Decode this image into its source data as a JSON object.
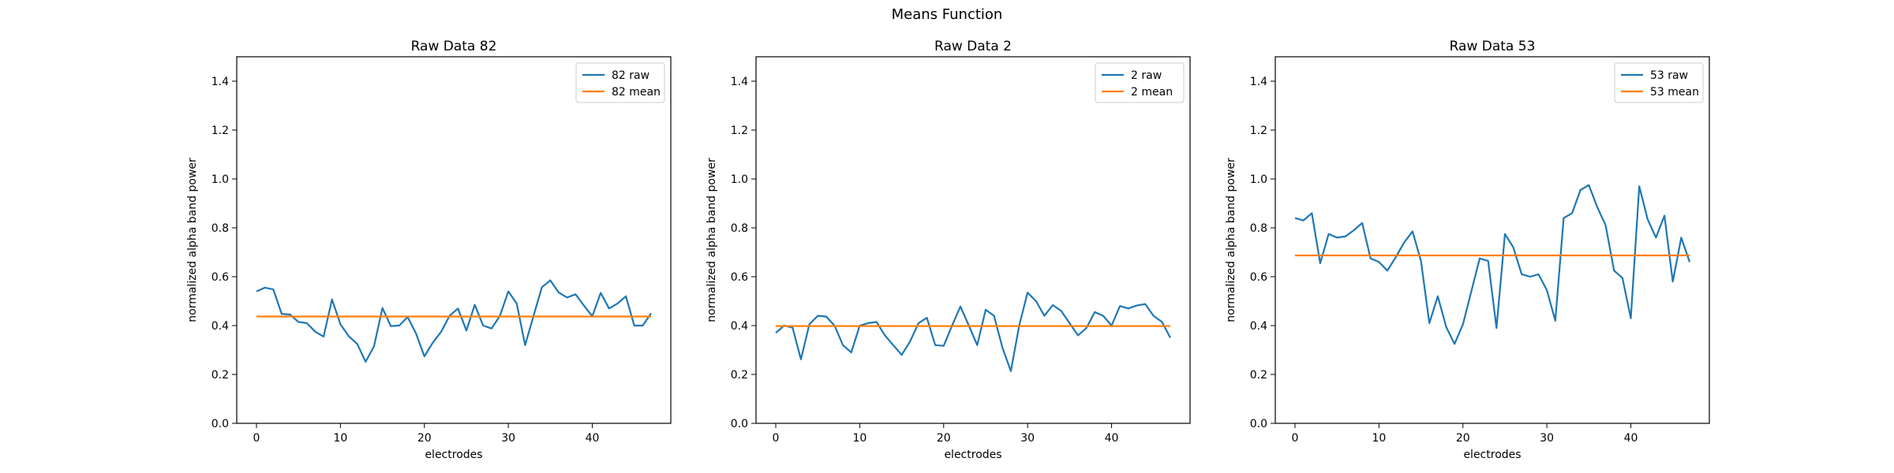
{
  "figure": {
    "suptitle": "Means Function"
  },
  "chart_data": [
    {
      "type": "line",
      "title": "Raw Data 82",
      "xlabel": "electrodes",
      "ylabel": "normalized alpha band power",
      "xlim": [
        -2.35,
        49.35
      ],
      "ylim": [
        0.0,
        1.5
      ],
      "xticks": [
        0,
        10,
        20,
        30,
        40
      ],
      "yticks": [
        0.0,
        0.2,
        0.4,
        0.6,
        0.8,
        1.0,
        1.2,
        1.4
      ],
      "legend": "top-right",
      "grid": false,
      "series": [
        {
          "name": "82 raw",
          "color": "#1f77b4",
          "x": [
            0,
            1,
            2,
            3,
            4,
            5,
            6,
            7,
            8,
            9,
            10,
            11,
            12,
            13,
            14,
            15,
            16,
            17,
            18,
            19,
            20,
            21,
            22,
            23,
            24,
            25,
            26,
            27,
            28,
            29,
            30,
            31,
            32,
            33,
            34,
            35,
            36,
            37,
            38,
            39,
            40,
            41,
            42,
            43,
            44,
            45,
            46,
            47
          ],
          "y": [
            0.54,
            0.555,
            0.548,
            0.448,
            0.445,
            0.415,
            0.41,
            0.375,
            0.355,
            0.507,
            0.405,
            0.356,
            0.325,
            0.252,
            0.315,
            0.472,
            0.398,
            0.4,
            0.435,
            0.368,
            0.274,
            0.33,
            0.375,
            0.44,
            0.47,
            0.38,
            0.485,
            0.4,
            0.388,
            0.44,
            0.54,
            0.49,
            0.32,
            0.44,
            0.557,
            0.585,
            0.535,
            0.515,
            0.528,
            0.482,
            0.438,
            0.534,
            0.47,
            0.49,
            0.52,
            0.4,
            0.4,
            0.45
          ]
        },
        {
          "name": "82 mean",
          "color": "#ff7f0e",
          "x": [
            0,
            47
          ],
          "y": [
            0.437,
            0.437
          ]
        }
      ]
    },
    {
      "type": "line",
      "title": "Raw Data 2",
      "xlabel": "electrodes",
      "ylabel": "normalized alpha band power",
      "xlim": [
        -2.35,
        49.35
      ],
      "ylim": [
        0.0,
        1.5
      ],
      "xticks": [
        0,
        10,
        20,
        30,
        40
      ],
      "yticks": [
        0.0,
        0.2,
        0.4,
        0.6,
        0.8,
        1.0,
        1.2,
        1.4
      ],
      "legend": "top-right",
      "grid": false,
      "series": [
        {
          "name": "2 raw",
          "color": "#1f77b4",
          "x": [
            0,
            1,
            2,
            3,
            4,
            5,
            6,
            7,
            8,
            9,
            10,
            11,
            12,
            13,
            14,
            15,
            16,
            17,
            18,
            19,
            20,
            21,
            22,
            23,
            24,
            25,
            26,
            27,
            28,
            29,
            30,
            31,
            32,
            33,
            34,
            35,
            36,
            37,
            38,
            39,
            40,
            41,
            42,
            43,
            44,
            45,
            46,
            47
          ],
          "y": [
            0.37,
            0.4,
            0.392,
            0.262,
            0.405,
            0.44,
            0.437,
            0.4,
            0.32,
            0.29,
            0.4,
            0.41,
            0.415,
            0.36,
            0.32,
            0.28,
            0.335,
            0.41,
            0.432,
            0.32,
            0.317,
            0.4,
            0.478,
            0.4,
            0.32,
            0.465,
            0.44,
            0.31,
            0.214,
            0.4,
            0.535,
            0.5,
            0.44,
            0.484,
            0.46,
            0.41,
            0.36,
            0.39,
            0.455,
            0.44,
            0.4,
            0.48,
            0.47,
            0.482,
            0.488,
            0.44,
            0.415,
            0.35
          ]
        },
        {
          "name": "2 mean",
          "color": "#ff7f0e",
          "x": [
            0,
            47
          ],
          "y": [
            0.398,
            0.398
          ]
        }
      ]
    },
    {
      "type": "line",
      "title": "Raw Data 53",
      "xlabel": "electrodes",
      "ylabel": "normalized alpha band power",
      "xlim": [
        -2.35,
        49.35
      ],
      "ylim": [
        0.0,
        1.5
      ],
      "xticks": [
        0,
        10,
        20,
        30,
        40
      ],
      "yticks": [
        0.0,
        0.2,
        0.4,
        0.6,
        0.8,
        1.0,
        1.2,
        1.4
      ],
      "legend": "top-right",
      "grid": false,
      "series": [
        {
          "name": "53 raw",
          "color": "#1f77b4",
          "x": [
            0,
            1,
            2,
            3,
            4,
            5,
            6,
            7,
            8,
            9,
            10,
            11,
            12,
            13,
            14,
            15,
            16,
            17,
            18,
            19,
            20,
            21,
            22,
            23,
            24,
            25,
            26,
            27,
            28,
            29,
            30,
            31,
            32,
            33,
            34,
            35,
            36,
            37,
            38,
            39,
            40,
            41,
            42,
            43,
            44,
            45,
            46,
            47
          ],
          "y": [
            0.84,
            0.83,
            0.86,
            0.655,
            0.775,
            0.76,
            0.765,
            0.79,
            0.82,
            0.675,
            0.66,
            0.625,
            0.68,
            0.74,
            0.785,
            0.665,
            0.41,
            0.52,
            0.395,
            0.325,
            0.405,
            0.54,
            0.675,
            0.665,
            0.39,
            0.775,
            0.72,
            0.61,
            0.6,
            0.61,
            0.545,
            0.42,
            0.84,
            0.86,
            0.955,
            0.975,
            0.885,
            0.81,
            0.625,
            0.595,
            0.43,
            0.97,
            0.835,
            0.76,
            0.85,
            0.58,
            0.76,
            0.66
          ]
        },
        {
          "name": "53 mean",
          "color": "#ff7f0e",
          "x": [
            0,
            47
          ],
          "y": [
            0.687,
            0.687
          ]
        }
      ]
    }
  ]
}
